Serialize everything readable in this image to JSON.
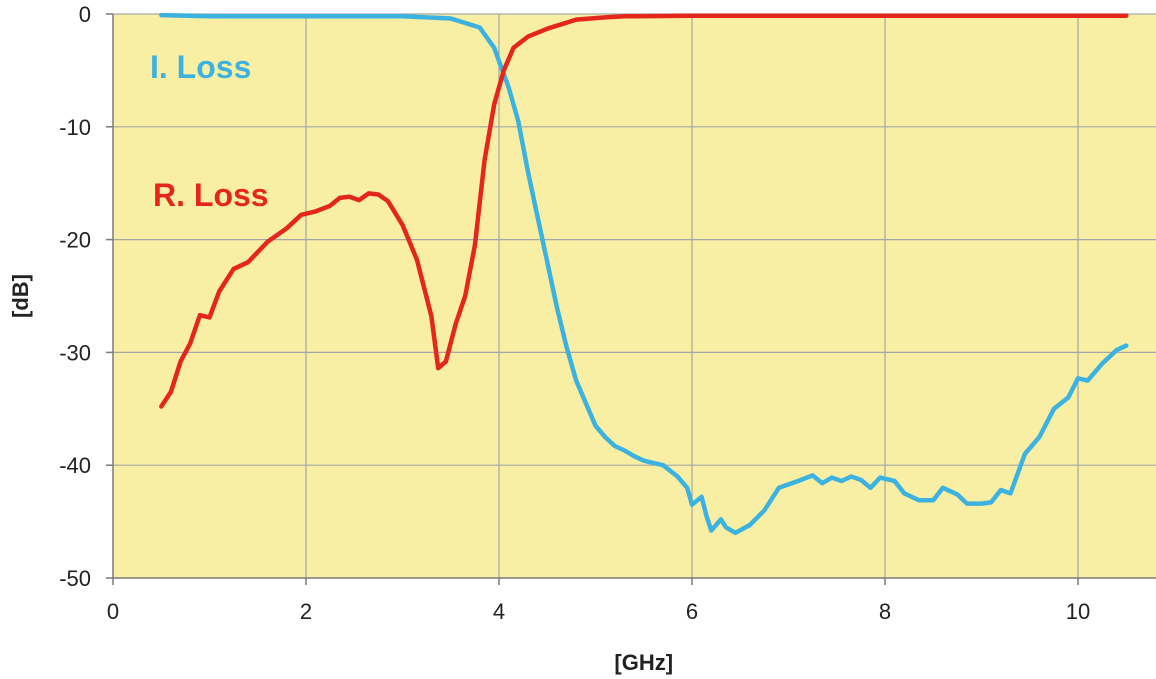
{
  "chart_data": {
    "type": "line",
    "title": "",
    "xlabel": "[GHz]",
    "ylabel": "[dB]",
    "xlim": [
      0,
      10.5
    ],
    "ylim": [
      -50,
      0
    ],
    "x_ticks": [
      0,
      2,
      4,
      6,
      8,
      10
    ],
    "y_ticks": [
      0,
      -10,
      -20,
      -30,
      -40,
      -50
    ],
    "x_tick_labels": [
      "0",
      "2",
      "4",
      "6",
      "8",
      "10"
    ],
    "y_tick_labels": [
      "0",
      "-10",
      "-20",
      "-30",
      "-40",
      "-50"
    ],
    "grid": true,
    "background_color": "#f8efa4",
    "grid_color": "#a6a6a6",
    "legend": "inline labels",
    "series": [
      {
        "name": "I. Loss",
        "color": "#3cb2e0",
        "points": [
          [
            0.5,
            -0.1
          ],
          [
            1.0,
            -0.2
          ],
          [
            2.0,
            -0.2
          ],
          [
            3.0,
            -0.2
          ],
          [
            3.5,
            -0.4
          ],
          [
            3.8,
            -1.2
          ],
          [
            3.95,
            -3.0
          ],
          [
            4.1,
            -6.5
          ],
          [
            4.2,
            -9.5
          ],
          [
            4.3,
            -14.0
          ],
          [
            4.4,
            -18.0
          ],
          [
            4.5,
            -22.0
          ],
          [
            4.6,
            -26.0
          ],
          [
            4.7,
            -29.5
          ],
          [
            4.8,
            -32.5
          ],
          [
            4.9,
            -34.5
          ],
          [
            5.0,
            -36.5
          ],
          [
            5.1,
            -37.5
          ],
          [
            5.2,
            -38.3
          ],
          [
            5.3,
            -38.7
          ],
          [
            5.4,
            -39.2
          ],
          [
            5.5,
            -39.6
          ],
          [
            5.7,
            -40.0
          ],
          [
            5.85,
            -41.0
          ],
          [
            5.95,
            -42.0
          ],
          [
            6.0,
            -43.5
          ],
          [
            6.1,
            -42.8
          ],
          [
            6.15,
            -44.5
          ],
          [
            6.2,
            -45.8
          ],
          [
            6.3,
            -44.8
          ],
          [
            6.35,
            -45.5
          ],
          [
            6.45,
            -46.0
          ],
          [
            6.6,
            -45.3
          ],
          [
            6.75,
            -44.0
          ],
          [
            6.9,
            -42.0
          ],
          [
            7.1,
            -41.4
          ],
          [
            7.25,
            -40.9
          ],
          [
            7.35,
            -41.6
          ],
          [
            7.45,
            -41.1
          ],
          [
            7.55,
            -41.4
          ],
          [
            7.65,
            -41.0
          ],
          [
            7.75,
            -41.3
          ],
          [
            7.85,
            -42.0
          ],
          [
            7.95,
            -41.1
          ],
          [
            8.1,
            -41.4
          ],
          [
            8.2,
            -42.5
          ],
          [
            8.35,
            -43.1
          ],
          [
            8.5,
            -43.1
          ],
          [
            8.6,
            -42.0
          ],
          [
            8.75,
            -42.6
          ],
          [
            8.85,
            -43.4
          ],
          [
            9.0,
            -43.4
          ],
          [
            9.1,
            -43.3
          ],
          [
            9.2,
            -42.2
          ],
          [
            9.3,
            -42.5
          ],
          [
            9.45,
            -39.0
          ],
          [
            9.6,
            -37.5
          ],
          [
            9.75,
            -35.0
          ],
          [
            9.9,
            -34.0
          ],
          [
            10.0,
            -32.3
          ],
          [
            10.1,
            -32.5
          ],
          [
            10.25,
            -31.0
          ],
          [
            10.4,
            -29.8
          ],
          [
            10.5,
            -29.4
          ]
        ]
      },
      {
        "name": "R. Loss",
        "color": "#e5261c",
        "points": [
          [
            0.5,
            -34.8
          ],
          [
            0.6,
            -33.5
          ],
          [
            0.7,
            -30.8
          ],
          [
            0.8,
            -29.2
          ],
          [
            0.9,
            -26.7
          ],
          [
            1.0,
            -26.9
          ],
          [
            1.1,
            -24.6
          ],
          [
            1.25,
            -22.6
          ],
          [
            1.4,
            -22.0
          ],
          [
            1.6,
            -20.2
          ],
          [
            1.8,
            -19.0
          ],
          [
            1.95,
            -17.8
          ],
          [
            2.1,
            -17.5
          ],
          [
            2.25,
            -17.0
          ],
          [
            2.35,
            -16.3
          ],
          [
            2.45,
            -16.2
          ],
          [
            2.55,
            -16.5
          ],
          [
            2.65,
            -15.9
          ],
          [
            2.75,
            -16.0
          ],
          [
            2.85,
            -16.6
          ],
          [
            3.0,
            -18.7
          ],
          [
            3.15,
            -21.8
          ],
          [
            3.3,
            -26.8
          ],
          [
            3.37,
            -31.4
          ],
          [
            3.45,
            -30.8
          ],
          [
            3.55,
            -27.5
          ],
          [
            3.65,
            -25.0
          ],
          [
            3.75,
            -20.5
          ],
          [
            3.85,
            -13.0
          ],
          [
            3.95,
            -8.0
          ],
          [
            4.05,
            -5.0
          ],
          [
            4.15,
            -3.0
          ],
          [
            4.3,
            -2.0
          ],
          [
            4.5,
            -1.3
          ],
          [
            4.8,
            -0.5
          ],
          [
            5.1,
            -0.3
          ],
          [
            5.3,
            -0.2
          ],
          [
            6.0,
            -0.15
          ],
          [
            7.0,
            -0.15
          ],
          [
            8.0,
            -0.15
          ],
          [
            9.0,
            -0.15
          ],
          [
            10.0,
            -0.15
          ],
          [
            10.5,
            -0.15
          ]
        ],
        "label_anchor": [
          0.43,
          -15.9
        ]
      }
    ]
  }
}
